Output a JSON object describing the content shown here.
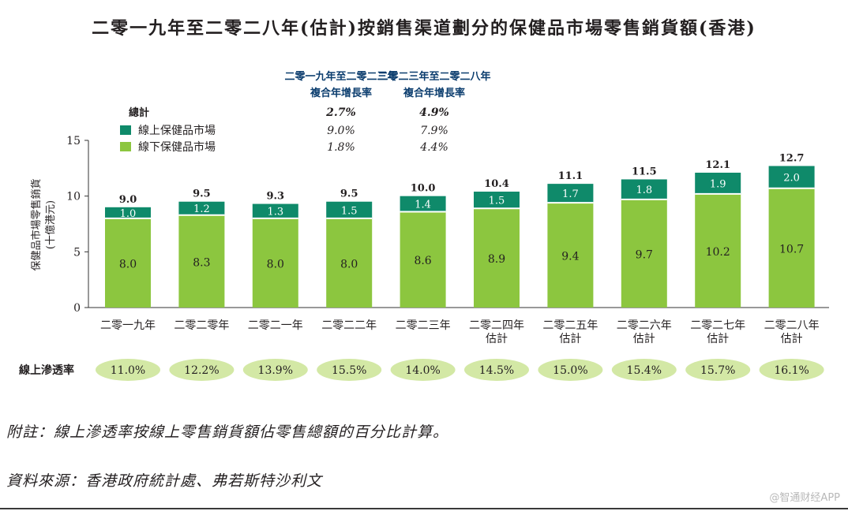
{
  "colors": {
    "online": "#0f8a6a",
    "offline": "#8cc63f",
    "penetration_fill": "#d3e8a5",
    "axis": "#333333"
  },
  "chart_data": {
    "type": "bar",
    "stacked": true,
    "title": "二零一九年至二零二八年(估計)按銷售渠道劃分的保健品市場零售銷貨額(香港)",
    "ylabel": "保健品市場零售銷貨",
    "ylabel_unit": "(十億港元)",
    "ylim": [
      0,
      15
    ],
    "yticks": [
      0,
      5,
      10,
      15
    ],
    "categories": [
      [
        "二零一九年"
      ],
      [
        "二零二零年"
      ],
      [
        "二零二一年"
      ],
      [
        "二零二二年"
      ],
      [
        "二零二三年"
      ],
      [
        "二零二四年",
        "估計"
      ],
      [
        "二零二五年",
        "估計"
      ],
      [
        "二零二六年",
        "估計"
      ],
      [
        "二零二七年",
        "估計"
      ],
      [
        "二零二八年",
        "估計"
      ]
    ],
    "series": [
      {
        "name": "線下保健品市場",
        "values": [
          8.0,
          8.3,
          8.0,
          8.0,
          8.6,
          8.9,
          9.4,
          9.7,
          10.2,
          10.7
        ]
      },
      {
        "name": "線上保健品市場",
        "values": [
          1.0,
          1.2,
          1.3,
          1.5,
          1.4,
          1.5,
          1.7,
          1.8,
          1.9,
          2.0
        ]
      }
    ],
    "totals": [
      9.0,
      9.5,
      9.3,
      9.5,
      10.0,
      10.4,
      11.1,
      11.5,
      12.1,
      12.7
    ],
    "labels": {
      "offline": [
        "8.0",
        "8.3",
        "8.0",
        "8.0",
        "8.6",
        "8.9",
        "9.4",
        "9.7",
        "10.2",
        "10.7"
      ],
      "online": [
        "1.0",
        "1.2",
        "1.3",
        "1.5",
        "1.4",
        "1.5",
        "1.7",
        "1.8",
        "1.9",
        "2.0"
      ],
      "totals": [
        "9.0",
        "9.5",
        "9.3",
        "9.5",
        "10.0",
        "10.4",
        "11.1",
        "11.5",
        "12.1",
        "12.7"
      ]
    },
    "cagr_table": {
      "col_headers": [
        [
          "二零一九年至二零二三年",
          "複合年增長率"
        ],
        [
          "二零二三年至二零二八年",
          "複合年增長率"
        ]
      ],
      "rows": [
        {
          "label": "總計",
          "values": [
            "2.7%",
            "4.9%"
          ]
        },
        {
          "label": "線上保健品市場",
          "values": [
            "9.0%",
            "7.9%"
          ]
        },
        {
          "label": "線下保健品市場",
          "values": [
            "1.8%",
            "4.4%"
          ]
        }
      ]
    },
    "penetration": {
      "label": "線上滲透率",
      "values": [
        "11.0%",
        "12.2%",
        "13.9%",
        "15.5%",
        "14.0%",
        "14.5%",
        "15.0%",
        "15.4%",
        "15.7%",
        "16.1%"
      ]
    }
  },
  "notes": {
    "note": "附註：線上滲透率按線上零售銷貨額佔零售總額的百分比計算。",
    "source": "資料來源：香港政府統計處、弗若斯特沙利文"
  },
  "watermark": "@智通财经APP"
}
